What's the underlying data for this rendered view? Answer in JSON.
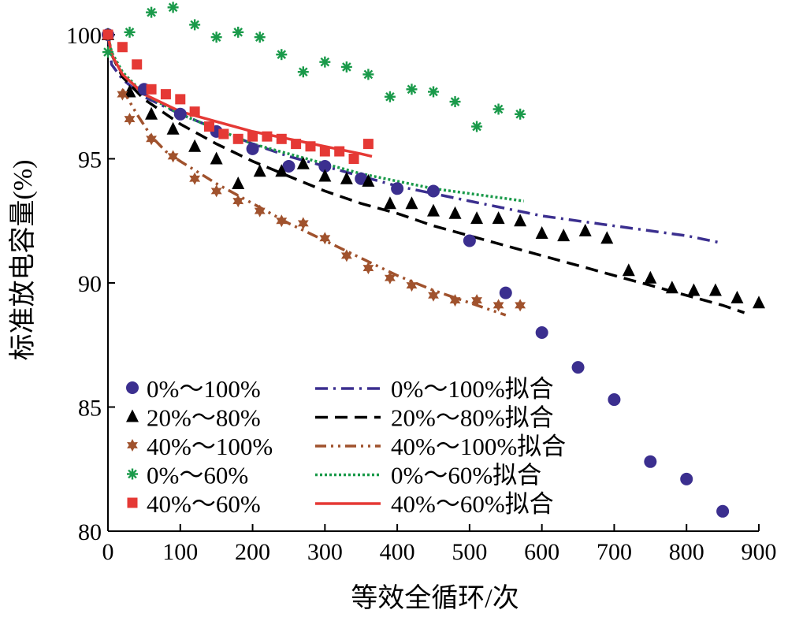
{
  "chart_data": {
    "type": "scatter",
    "xlabel": "等效全循环/次",
    "ylabel": "标准放电容量(%)",
    "xlim": [
      0,
      900
    ],
    "ylim": [
      80,
      100
    ],
    "x_ticks": [
      0,
      100,
      200,
      300,
      400,
      500,
      600,
      700,
      800,
      900
    ],
    "y_ticks": [
      80,
      85,
      90,
      95,
      100
    ],
    "grid": false,
    "legend_position": "bottom-left",
    "series": [
      {
        "name": "0%～100%",
        "marker": "circle",
        "color": "#3b2f8f",
        "points": [
          [
            0,
            100.0
          ],
          [
            50,
            97.8
          ],
          [
            100,
            96.8
          ],
          [
            150,
            96.1
          ],
          [
            200,
            95.4
          ],
          [
            250,
            94.7
          ],
          [
            300,
            94.7
          ],
          [
            350,
            94.2
          ],
          [
            400,
            93.8
          ],
          [
            450,
            93.7
          ],
          [
            500,
            91.7
          ],
          [
            550,
            89.6
          ],
          [
            600,
            88.0
          ],
          [
            650,
            86.6
          ],
          [
            700,
            85.3
          ],
          [
            750,
            82.8
          ],
          [
            800,
            82.1
          ],
          [
            850,
            80.8
          ]
        ]
      },
      {
        "name": "20%～80%",
        "marker": "triangle",
        "color": "#000000",
        "points": [
          [
            0,
            100.0
          ],
          [
            30,
            97.7
          ],
          [
            60,
            96.8
          ],
          [
            90,
            96.2
          ],
          [
            120,
            95.5
          ],
          [
            150,
            95.0
          ],
          [
            180,
            94.0
          ],
          [
            210,
            94.5
          ],
          [
            240,
            94.5
          ],
          [
            270,
            94.8
          ],
          [
            300,
            94.3
          ],
          [
            330,
            94.2
          ],
          [
            360,
            94.1
          ],
          [
            390,
            93.2
          ],
          [
            420,
            93.2
          ],
          [
            450,
            92.9
          ],
          [
            480,
            92.8
          ],
          [
            510,
            92.6
          ],
          [
            540,
            92.6
          ],
          [
            570,
            92.5
          ],
          [
            600,
            92.0
          ],
          [
            630,
            91.9
          ],
          [
            660,
            92.1
          ],
          [
            690,
            91.8
          ],
          [
            720,
            90.5
          ],
          [
            750,
            90.2
          ],
          [
            780,
            89.8
          ],
          [
            810,
            89.7
          ],
          [
            840,
            89.7
          ],
          [
            870,
            89.4
          ],
          [
            900,
            89.2
          ]
        ]
      },
      {
        "name": "40%～100%",
        "marker": "star",
        "color": "#a0522d",
        "points": [
          [
            0,
            100.0
          ],
          [
            20,
            97.6
          ],
          [
            30,
            96.6
          ],
          [
            60,
            95.8
          ],
          [
            90,
            95.1
          ],
          [
            120,
            94.2
          ],
          [
            150,
            93.7
          ],
          [
            180,
            93.3
          ],
          [
            210,
            92.9
          ],
          [
            240,
            92.5
          ],
          [
            270,
            92.4
          ],
          [
            300,
            91.8
          ],
          [
            330,
            91.1
          ],
          [
            360,
            90.6
          ],
          [
            390,
            90.2
          ],
          [
            420,
            89.9
          ],
          [
            450,
            89.5
          ],
          [
            480,
            89.3
          ],
          [
            510,
            89.3
          ],
          [
            540,
            89.1
          ],
          [
            570,
            89.1
          ]
        ]
      },
      {
        "name": "0%～60%",
        "marker": "asterisk",
        "color": "#1a9a4a",
        "points": [
          [
            0,
            99.3
          ],
          [
            30,
            100.1
          ],
          [
            60,
            100.9
          ],
          [
            90,
            101.1
          ],
          [
            120,
            100.4
          ],
          [
            150,
            99.9
          ],
          [
            180,
            100.1
          ],
          [
            210,
            99.9
          ],
          [
            240,
            99.2
          ],
          [
            270,
            98.5
          ],
          [
            300,
            98.9
          ],
          [
            330,
            98.7
          ],
          [
            360,
            98.4
          ],
          [
            390,
            97.5
          ],
          [
            420,
            97.8
          ],
          [
            450,
            97.7
          ],
          [
            480,
            97.3
          ],
          [
            510,
            96.3
          ],
          [
            540,
            97.0
          ],
          [
            570,
            96.8
          ]
        ]
      },
      {
        "name": "40%～60%",
        "marker": "square",
        "color": "#e53935",
        "points": [
          [
            0,
            100.0
          ],
          [
            20,
            99.5
          ],
          [
            40,
            98.8
          ],
          [
            60,
            97.8
          ],
          [
            80,
            97.6
          ],
          [
            100,
            97.4
          ],
          [
            120,
            96.9
          ],
          [
            140,
            96.3
          ],
          [
            160,
            96.0
          ],
          [
            180,
            95.8
          ],
          [
            200,
            95.9
          ],
          [
            220,
            95.9
          ],
          [
            240,
            95.8
          ],
          [
            260,
            95.6
          ],
          [
            280,
            95.5
          ],
          [
            300,
            95.3
          ],
          [
            320,
            95.3
          ],
          [
            340,
            95.0
          ],
          [
            360,
            95.6
          ]
        ]
      }
    ],
    "fits": [
      {
        "name": "0%～100%拟合",
        "style": "dash-dot",
        "color": "#3b2f8f",
        "points": [
          [
            0,
            100.0
          ],
          [
            5,
            98.8
          ],
          [
            20,
            98.2
          ],
          [
            50,
            97.5
          ],
          [
            100,
            96.8
          ],
          [
            150,
            96.2
          ],
          [
            200,
            95.6
          ],
          [
            250,
            95.1
          ],
          [
            300,
            94.7
          ],
          [
            350,
            94.3
          ],
          [
            400,
            93.9
          ],
          [
            450,
            93.6
          ],
          [
            500,
            93.3
          ],
          [
            550,
            93.0
          ],
          [
            600,
            92.7
          ],
          [
            650,
            92.5
          ],
          [
            700,
            92.3
          ],
          [
            750,
            92.1
          ],
          [
            800,
            91.9
          ],
          [
            850,
            91.6
          ]
        ]
      },
      {
        "name": "20%～80%拟合",
        "style": "dash",
        "color": "#000000",
        "points": [
          [
            0,
            100.0
          ],
          [
            5,
            99.2
          ],
          [
            20,
            98.3
          ],
          [
            50,
            97.4
          ],
          [
            100,
            96.4
          ],
          [
            150,
            95.6
          ],
          [
            200,
            94.9
          ],
          [
            250,
            94.3
          ],
          [
            300,
            93.7
          ],
          [
            350,
            93.2
          ],
          [
            400,
            92.8
          ],
          [
            450,
            92.3
          ],
          [
            500,
            91.9
          ],
          [
            550,
            91.5
          ],
          [
            600,
            91.1
          ],
          [
            650,
            90.7
          ],
          [
            700,
            90.3
          ],
          [
            750,
            89.9
          ],
          [
            800,
            89.5
          ],
          [
            850,
            89.1
          ],
          [
            880,
            88.8
          ]
        ]
      },
      {
        "name": "40%～100%拟合",
        "style": "dash-dot-dot",
        "color": "#a0522d",
        "points": [
          [
            20,
            97.8
          ],
          [
            40,
            96.8
          ],
          [
            60,
            95.9
          ],
          [
            80,
            95.3
          ],
          [
            100,
            94.9
          ],
          [
            150,
            94.0
          ],
          [
            200,
            93.2
          ],
          [
            250,
            92.4
          ],
          [
            300,
            91.7
          ],
          [
            350,
            91.0
          ],
          [
            400,
            90.3
          ],
          [
            450,
            89.7
          ],
          [
            500,
            89.2
          ],
          [
            550,
            88.7
          ]
        ]
      },
      {
        "name": "0%～60%拟合",
        "style": "dotted",
        "color": "#1a9a4a",
        "points": [
          [
            0,
            100.0
          ],
          [
            5,
            99.3
          ],
          [
            20,
            98.5
          ],
          [
            50,
            97.6
          ],
          [
            100,
            96.8
          ],
          [
            150,
            96.2
          ],
          [
            200,
            95.6
          ],
          [
            250,
            95.2
          ],
          [
            300,
            94.8
          ],
          [
            350,
            94.4
          ],
          [
            400,
            94.1
          ],
          [
            450,
            93.8
          ],
          [
            500,
            93.6
          ],
          [
            550,
            93.4
          ],
          [
            575,
            93.3
          ]
        ]
      },
      {
        "name": "40%～60%拟合",
        "style": "solid",
        "color": "#e53935",
        "points": [
          [
            0,
            100.0
          ],
          [
            5,
            99.2
          ],
          [
            20,
            98.4
          ],
          [
            50,
            97.6
          ],
          [
            100,
            96.9
          ],
          [
            150,
            96.5
          ],
          [
            200,
            96.1
          ],
          [
            250,
            95.8
          ],
          [
            300,
            95.5
          ],
          [
            350,
            95.2
          ],
          [
            365,
            95.1
          ]
        ]
      }
    ]
  }
}
